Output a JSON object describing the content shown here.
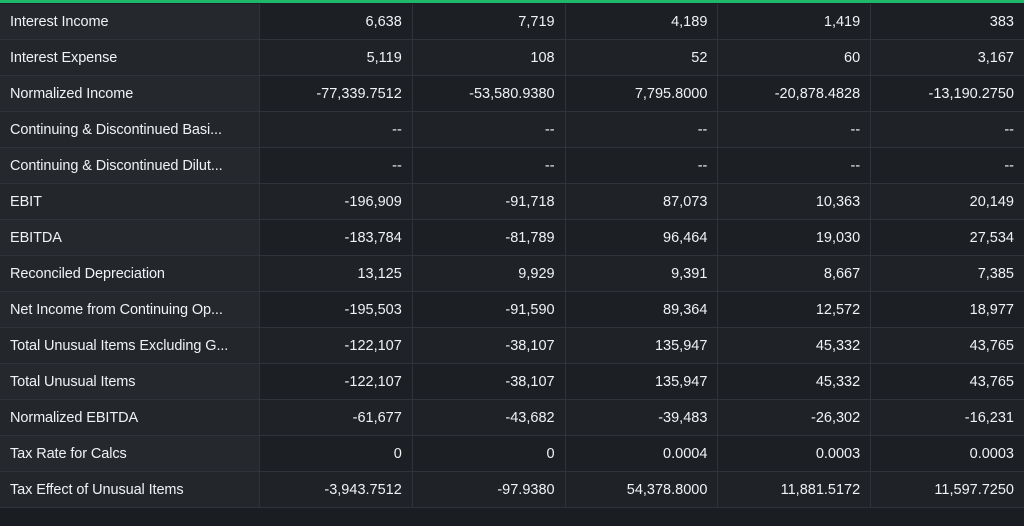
{
  "rows": [
    {
      "label": "Interest Income",
      "values": [
        "6,638",
        "7,719",
        "4,189",
        "1,419",
        "383"
      ]
    },
    {
      "label": "Interest Expense",
      "values": [
        "5,119",
        "108",
        "52",
        "60",
        "3,167"
      ]
    },
    {
      "label": "Normalized Income",
      "values": [
        "-77,339.7512",
        "-53,580.9380",
        "7,795.8000",
        "-20,878.4828",
        "-13,190.2750"
      ]
    },
    {
      "label": "Continuing & Discontinued Basi...",
      "values": [
        "--",
        "--",
        "--",
        "--",
        "--"
      ]
    },
    {
      "label": "Continuing & Discontinued Dilut...",
      "values": [
        "--",
        "--",
        "--",
        "--",
        "--"
      ]
    },
    {
      "label": "EBIT",
      "values": [
        "-196,909",
        "-91,718",
        "87,073",
        "10,363",
        "20,149"
      ]
    },
    {
      "label": "EBITDA",
      "values": [
        "-183,784",
        "-81,789",
        "96,464",
        "19,030",
        "27,534"
      ]
    },
    {
      "label": "Reconciled Depreciation",
      "values": [
        "13,125",
        "9,929",
        "9,391",
        "8,667",
        "7,385"
      ]
    },
    {
      "label": "Net Income from Continuing Op...",
      "values": [
        "-195,503",
        "-91,590",
        "89,364",
        "12,572",
        "18,977"
      ]
    },
    {
      "label": "Total Unusual Items Excluding G...",
      "values": [
        "-122,107",
        "-38,107",
        "135,947",
        "45,332",
        "43,765"
      ]
    },
    {
      "label": "Total Unusual Items",
      "values": [
        "-122,107",
        "-38,107",
        "135,947",
        "45,332",
        "43,765"
      ]
    },
    {
      "label": "Normalized EBITDA",
      "values": [
        "-61,677",
        "-43,682",
        "-39,483",
        "-26,302",
        "-16,231"
      ]
    },
    {
      "label": "Tax Rate for Calcs",
      "values": [
        "0",
        "0",
        "0.0004",
        "0.0003",
        "0.0003"
      ]
    },
    {
      "label": "Tax Effect of Unusual Items",
      "values": [
        "-3,943.7512",
        "-97.9380",
        "54,378.8000",
        "11,881.5172",
        "11,597.7250"
      ]
    }
  ],
  "colors": {
    "accent": "#1fb86b",
    "background": "#1a1d21",
    "text": "#f0f2f4"
  }
}
